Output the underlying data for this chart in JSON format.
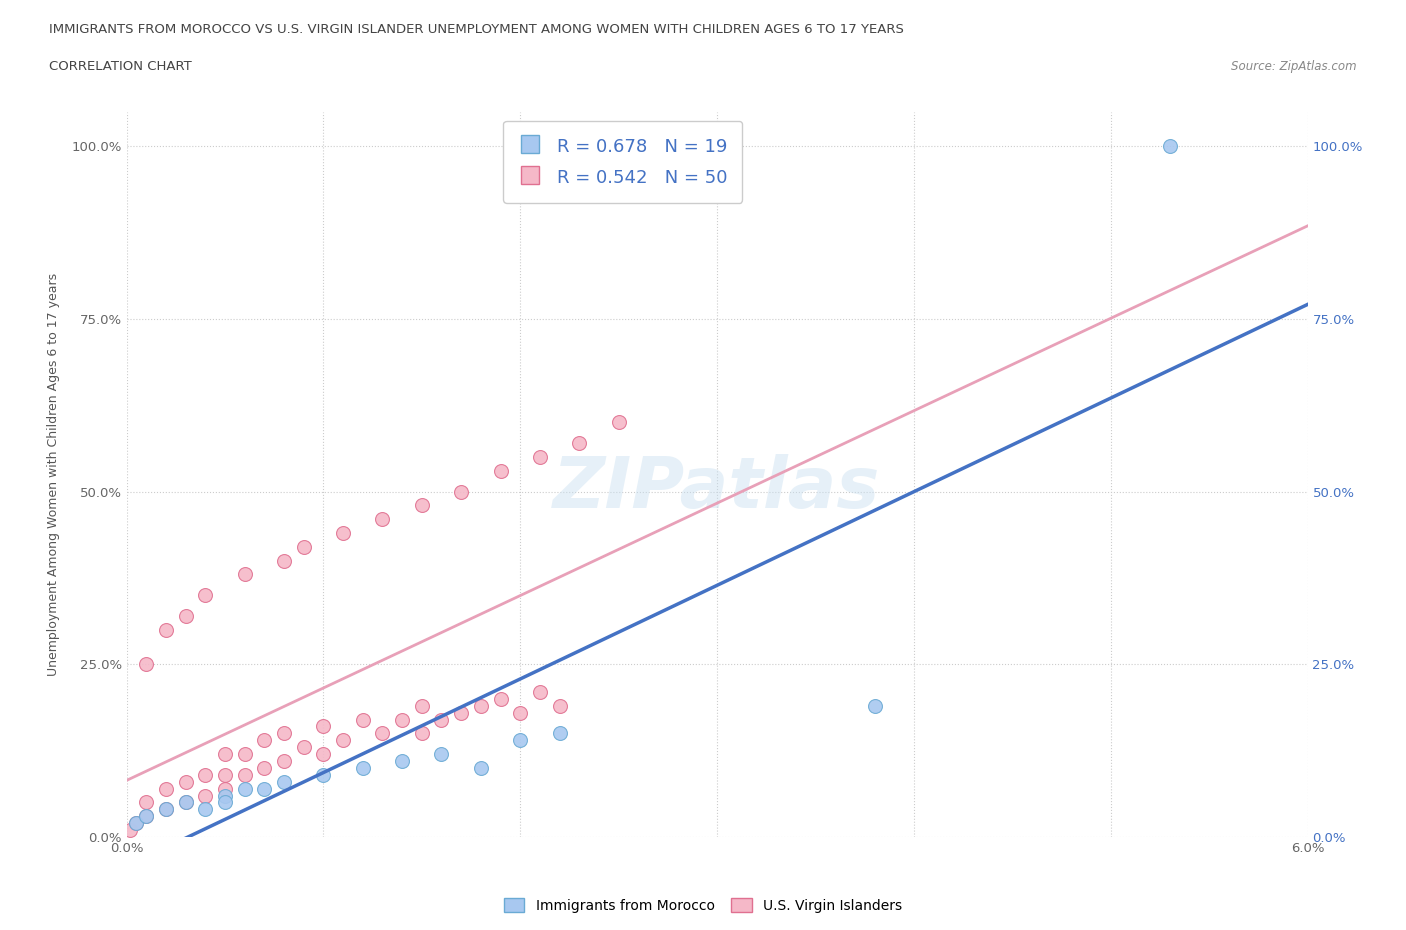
{
  "title_line1": "IMMIGRANTS FROM MOROCCO VS U.S. VIRGIN ISLANDER UNEMPLOYMENT AMONG WOMEN WITH CHILDREN AGES 6 TO 17 YEARS",
  "title_line2": "CORRELATION CHART",
  "source_text": "Source: ZipAtlas.com",
  "ylabel": "Unemployment Among Women with Children Ages 6 to 17 years",
  "xlim": [
    0.0,
    0.06
  ],
  "ylim": [
    0.0,
    1.05
  ],
  "x_ticks": [
    0.0,
    0.01,
    0.02,
    0.03,
    0.04,
    0.05,
    0.06
  ],
  "x_tick_labels": [
    "0.0%",
    "",
    "",
    "",
    "",
    "",
    "6.0%"
  ],
  "y_ticks": [
    0.0,
    0.25,
    0.5,
    0.75,
    1.0
  ],
  "y_tick_labels_left": [
    "0.0%",
    "25.0%",
    "50.0%",
    "75.0%",
    "100.0%"
  ],
  "y_tick_labels_right": [
    "0.0%",
    "25.0%",
    "50.0%",
    "75.0%",
    "100.0%"
  ],
  "legend1_R": "0.678",
  "legend1_N": "19",
  "legend2_R": "0.542",
  "legend2_N": "50",
  "morocco_color": "#a8c8f0",
  "morocco_edge": "#6aaad4",
  "virgin_color": "#f5b8c8",
  "virgin_edge": "#e07090",
  "reg_line_morocco_color": "#4472c4",
  "reg_line_virgin_color": "#e8a0b8",
  "watermark": "ZIPatlas",
  "morocco_x": [
    0.0005,
    0.001,
    0.002,
    0.003,
    0.004,
    0.005,
    0.005,
    0.006,
    0.007,
    0.008,
    0.01,
    0.012,
    0.014,
    0.016,
    0.018,
    0.02,
    0.022,
    0.038,
    0.053
  ],
  "morocco_y": [
    0.02,
    0.03,
    0.04,
    0.05,
    0.04,
    0.06,
    0.05,
    0.07,
    0.07,
    0.08,
    0.09,
    0.1,
    0.11,
    0.12,
    0.1,
    0.14,
    0.15,
    0.19,
    1.0
  ],
  "virgin_x": [
    0.0002,
    0.0005,
    0.001,
    0.001,
    0.002,
    0.002,
    0.003,
    0.003,
    0.004,
    0.004,
    0.005,
    0.005,
    0.005,
    0.006,
    0.006,
    0.007,
    0.007,
    0.008,
    0.008,
    0.009,
    0.01,
    0.01,
    0.011,
    0.012,
    0.013,
    0.014,
    0.015,
    0.015,
    0.016,
    0.017,
    0.018,
    0.019,
    0.02,
    0.021,
    0.022,
    0.001,
    0.002,
    0.003,
    0.004,
    0.006,
    0.008,
    0.009,
    0.011,
    0.013,
    0.015,
    0.017,
    0.019,
    0.021,
    0.023,
    0.025
  ],
  "virgin_y": [
    0.01,
    0.02,
    0.03,
    0.05,
    0.04,
    0.07,
    0.05,
    0.08,
    0.06,
    0.09,
    0.07,
    0.09,
    0.12,
    0.09,
    0.12,
    0.1,
    0.14,
    0.11,
    0.15,
    0.13,
    0.12,
    0.16,
    0.14,
    0.17,
    0.15,
    0.17,
    0.15,
    0.19,
    0.17,
    0.18,
    0.19,
    0.2,
    0.18,
    0.21,
    0.19,
    0.25,
    0.3,
    0.32,
    0.35,
    0.38,
    0.4,
    0.42,
    0.44,
    0.46,
    0.48,
    0.5,
    0.53,
    0.55,
    0.57,
    0.6
  ]
}
